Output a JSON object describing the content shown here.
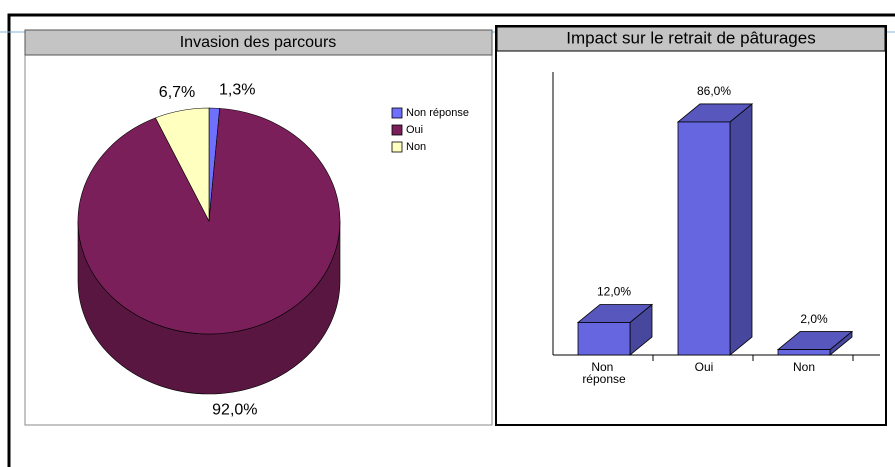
{
  "chart_data": [
    {
      "type": "pie",
      "title": "Invasion des parcours",
      "categories": [
        "Non réponse",
        "Oui",
        "Non"
      ],
      "values": [
        1.3,
        92.0,
        6.7
      ],
      "value_labels": [
        "1,3%",
        "92,0%",
        "6,7%"
      ],
      "colors": [
        "#7070ff",
        "#7b1f5a",
        "#ffffc0"
      ]
    },
    {
      "type": "bar",
      "title": "Impact sur le retrait de pâturages",
      "categories": [
        "Non réponse",
        "Oui",
        "Non"
      ],
      "values": [
        12.0,
        86.0,
        2.0
      ],
      "value_labels": [
        "12,0%",
        "86,0%",
        "2,0%"
      ],
      "color": "#6666e0",
      "ylim": [
        0,
        100
      ]
    }
  ]
}
